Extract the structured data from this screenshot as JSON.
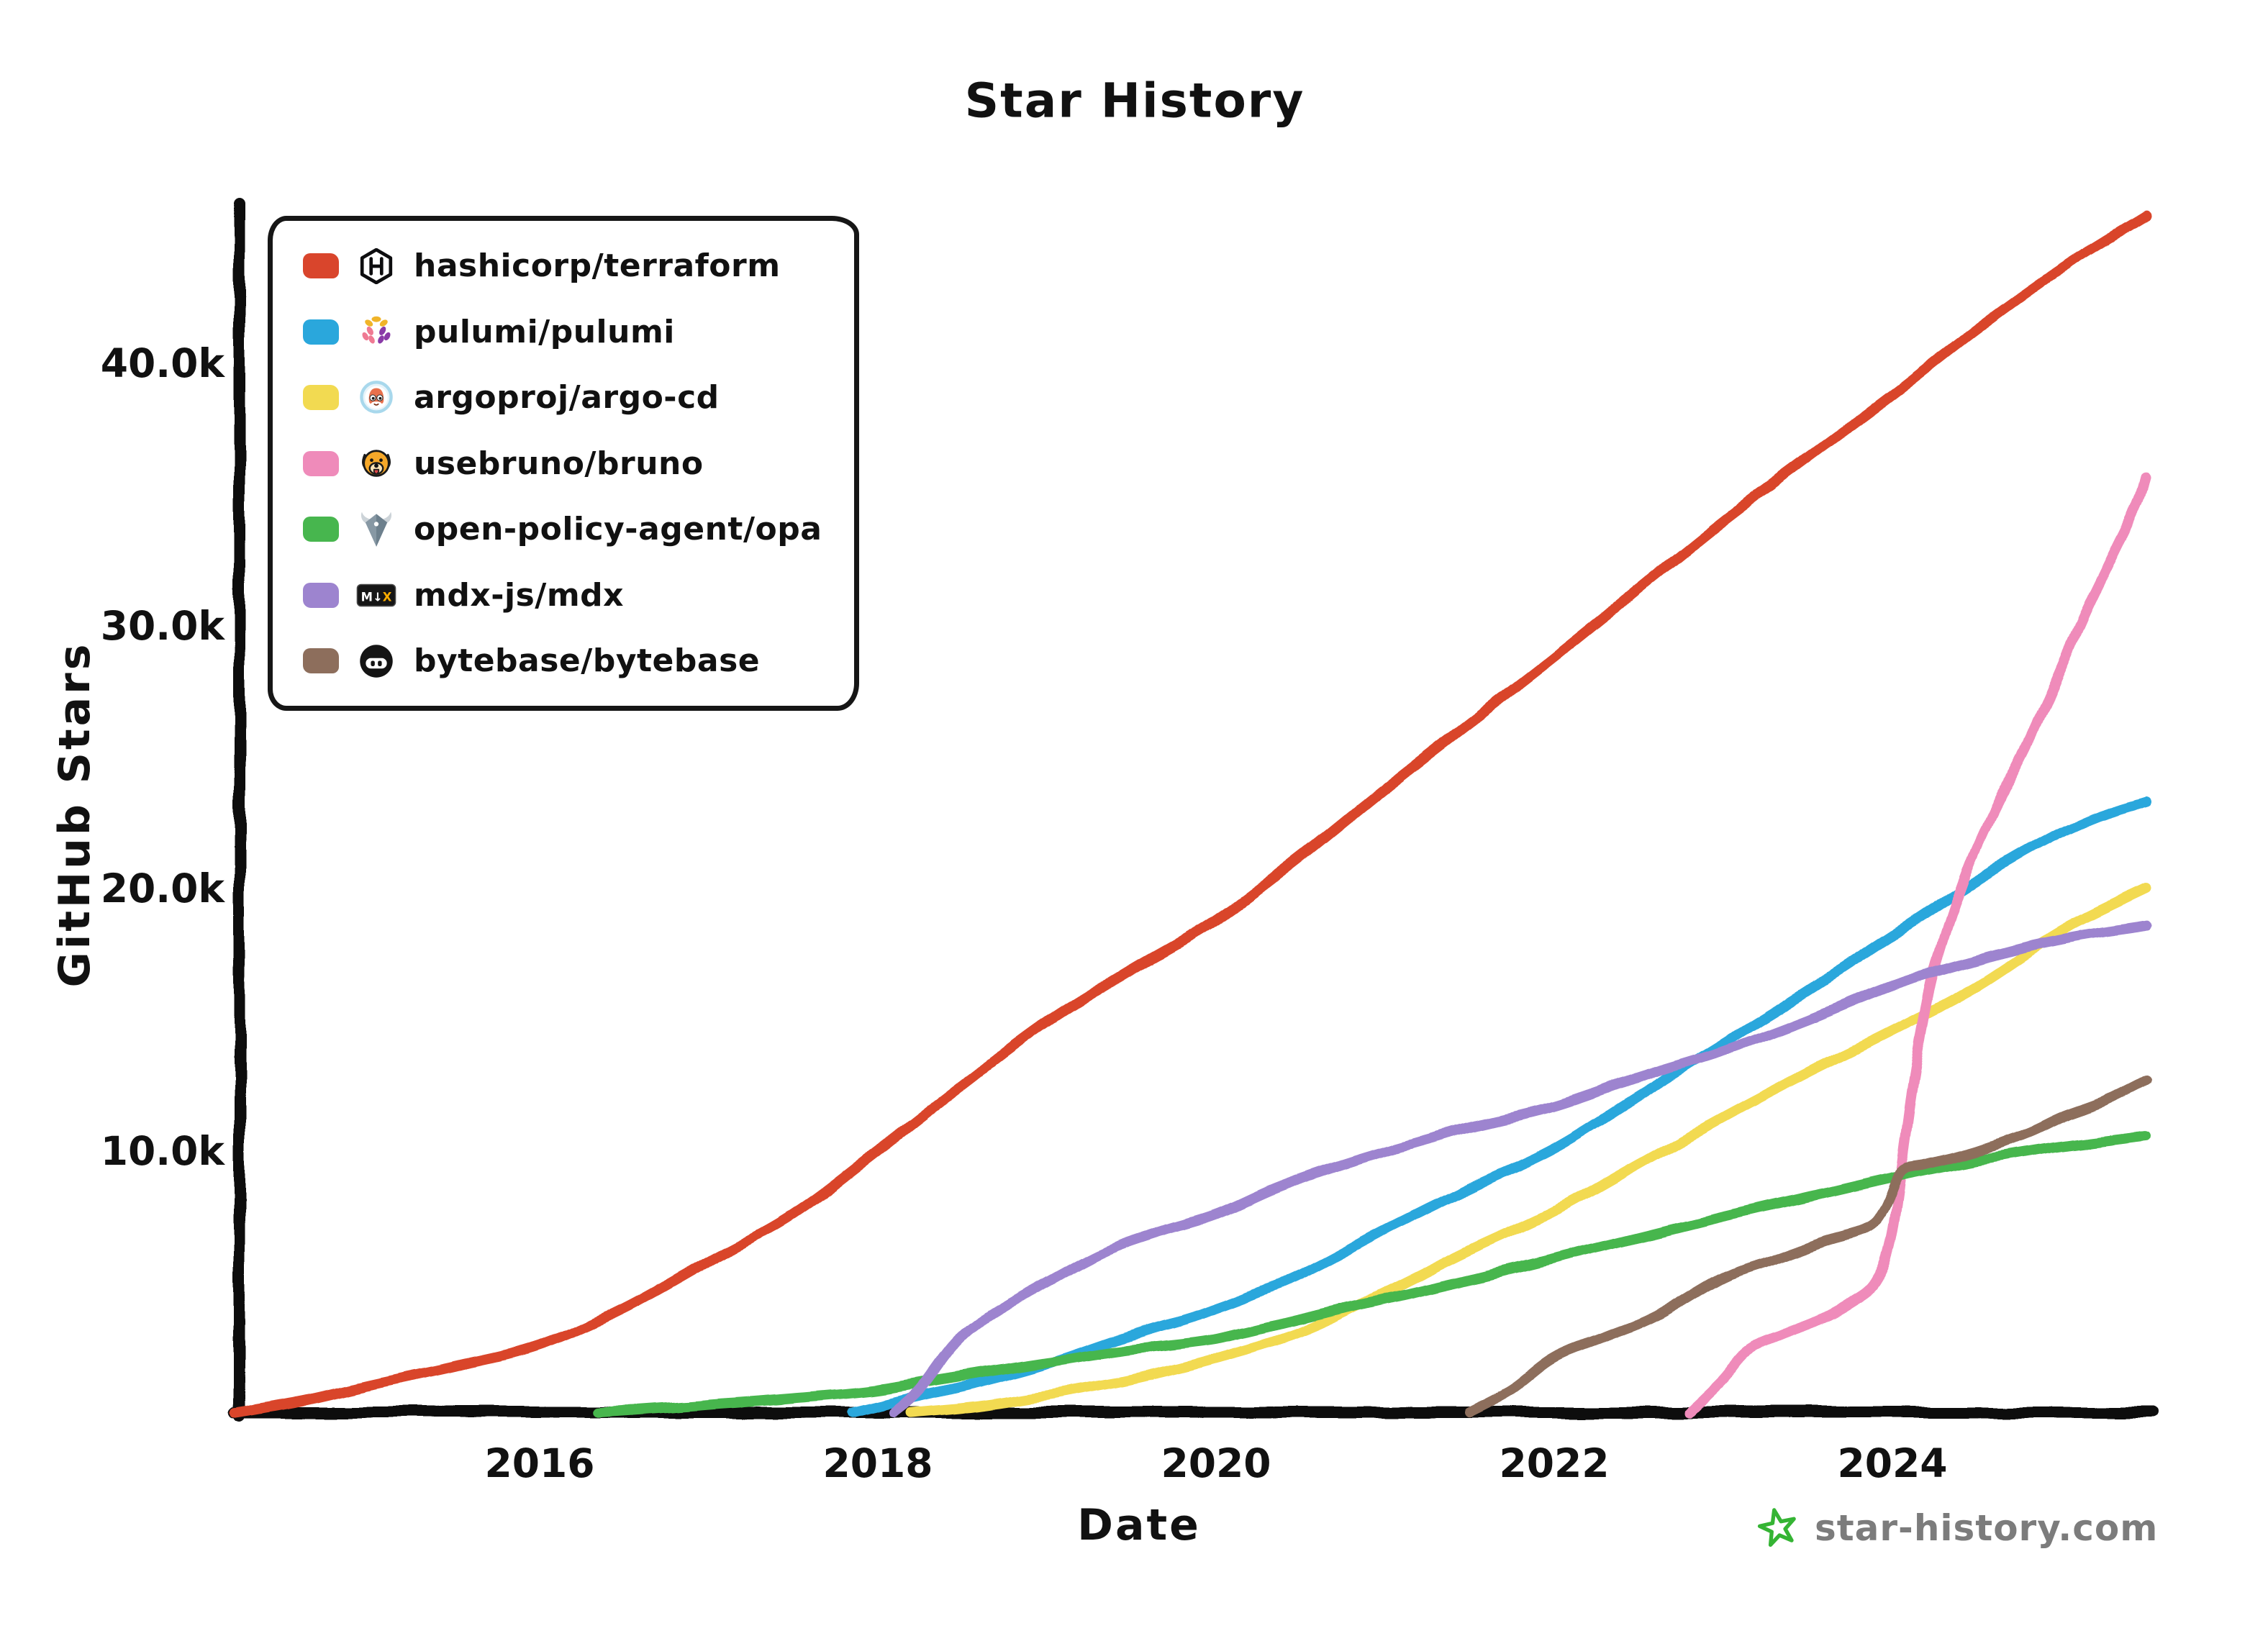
{
  "title": "Star History",
  "watermark": {
    "icon": "star-logo-icon",
    "text": "star-history.com"
  },
  "chart_data": {
    "type": "line",
    "title": "Star History",
    "xlabel": "Date",
    "ylabel": "GitHub Stars",
    "grid": false,
    "legend_position": "top-left",
    "x_range": [
      2014.2,
      2025.55
    ],
    "y_range": [
      0,
      46000
    ],
    "y_unit": "stars (thousands)",
    "x_ticks": [
      {
        "label": "2016",
        "year": 2016
      },
      {
        "label": "2018",
        "year": 2018
      },
      {
        "label": "2020",
        "year": 2020
      },
      {
        "label": "2022",
        "year": 2022
      },
      {
        "label": "2024",
        "year": 2024
      }
    ],
    "y_ticks": [
      {
        "label": "10.0k",
        "value": 10
      },
      {
        "label": "20.0k",
        "value": 20
      },
      {
        "label": "30.0k",
        "value": 30
      },
      {
        "label": "40.0k",
        "value": 40
      }
    ],
    "series": [
      {
        "name": "hashicorp/terraform",
        "color": "#d9452c",
        "icon": "hashicorp-icon",
        "points": [
          [
            2014.2,
            0.05
          ],
          [
            2014.6,
            0.5
          ],
          [
            2015,
            1.1
          ],
          [
            2015.5,
            1.8
          ],
          [
            2016,
            2.6
          ],
          [
            2016.5,
            4.0
          ],
          [
            2017,
            5.8
          ],
          [
            2017.5,
            7.6
          ],
          [
            2018,
            10.0
          ],
          [
            2018.5,
            12.5
          ],
          [
            2019,
            14.9
          ],
          [
            2019.5,
            16.9
          ],
          [
            2020,
            18.8
          ],
          [
            2020.5,
            21.2
          ],
          [
            2021,
            23.8
          ],
          [
            2021.5,
            26.3
          ],
          [
            2022,
            28.8
          ],
          [
            2022.5,
            31.4
          ],
          [
            2023,
            34.0
          ],
          [
            2023.5,
            36.4
          ],
          [
            2024,
            38.8
          ],
          [
            2024.5,
            41.3
          ],
          [
            2025,
            43.6
          ],
          [
            2025.5,
            45.6
          ]
        ]
      },
      {
        "name": "pulumi/pulumi",
        "color": "#2aa7dc",
        "icon": "pulumi-icon",
        "points": [
          [
            2017.85,
            0.05
          ],
          [
            2018.2,
            0.6
          ],
          [
            2018.6,
            1.2
          ],
          [
            2019,
            1.9
          ],
          [
            2019.5,
            3.0
          ],
          [
            2020,
            4.0
          ],
          [
            2020.5,
            5.3
          ],
          [
            2021,
            7.0
          ],
          [
            2021.5,
            8.6
          ],
          [
            2022,
            10.1
          ],
          [
            2022.5,
            12.1
          ],
          [
            2023,
            14.1
          ],
          [
            2023.5,
            16.1
          ],
          [
            2024,
            18.2
          ],
          [
            2024.5,
            20.3
          ],
          [
            2024.9,
            21.8
          ],
          [
            2025.2,
            22.7
          ],
          [
            2025.5,
            23.3
          ]
        ]
      },
      {
        "name": "argoproj/argo-cd",
        "color": "#f2da51",
        "icon": "argocd-icon",
        "points": [
          [
            2018.2,
            0.05
          ],
          [
            2018.6,
            0.3
          ],
          [
            2019,
            0.7
          ],
          [
            2019.5,
            1.3
          ],
          [
            2020,
            2.1
          ],
          [
            2020.5,
            3.1
          ],
          [
            2021,
            4.6
          ],
          [
            2021.5,
            6.2
          ],
          [
            2022,
            7.7
          ],
          [
            2022.5,
            9.5
          ],
          [
            2023,
            11.3
          ],
          [
            2023.5,
            13.0
          ],
          [
            2024,
            14.6
          ],
          [
            2024.5,
            16.3
          ],
          [
            2025,
            18.4
          ],
          [
            2025.5,
            20.0
          ]
        ]
      },
      {
        "name": "usebruno/bruno",
        "color": "#ef8bba",
        "icon": "bruno-icon",
        "points": [
          [
            2022.8,
            0.05
          ],
          [
            2023,
            1.3
          ],
          [
            2023.15,
            2.4
          ],
          [
            2023.35,
            3.0
          ],
          [
            2023.55,
            3.5
          ],
          [
            2023.75,
            4.2
          ],
          [
            2023.9,
            5.0
          ],
          [
            2024,
            6.8
          ],
          [
            2024.1,
            11.5
          ],
          [
            2024.2,
            15.5
          ],
          [
            2024.3,
            18.0
          ],
          [
            2024.45,
            20.8
          ],
          [
            2024.6,
            23.0
          ],
          [
            2024.8,
            25.5
          ],
          [
            2025,
            28.4
          ],
          [
            2025.15,
            30.6
          ],
          [
            2025.3,
            32.6
          ],
          [
            2025.45,
            34.6
          ],
          [
            2025.5,
            35.6
          ]
        ]
      },
      {
        "name": "open-policy-agent/opa",
        "color": "#47b64e",
        "icon": "opa-icon",
        "points": [
          [
            2016.35,
            0.05
          ],
          [
            2016.8,
            0.25
          ],
          [
            2017,
            0.35
          ],
          [
            2017.5,
            0.6
          ],
          [
            2018,
            0.9
          ],
          [
            2018.5,
            1.45
          ],
          [
            2019,
            1.95
          ],
          [
            2019.5,
            2.45
          ],
          [
            2020,
            2.85
          ],
          [
            2020.5,
            3.6
          ],
          [
            2021,
            4.35
          ],
          [
            2021.5,
            5.1
          ],
          [
            2022,
            5.9
          ],
          [
            2022.5,
            6.7
          ],
          [
            2023,
            7.5
          ],
          [
            2023.5,
            8.25
          ],
          [
            2024,
            9.0
          ],
          [
            2024.5,
            9.65
          ],
          [
            2025,
            10.2
          ],
          [
            2025.5,
            10.6
          ]
        ]
      },
      {
        "name": "mdx-js/mdx",
        "color": "#9d84cf",
        "icon": "mdx-icon",
        "points": [
          [
            2018.1,
            0.05
          ],
          [
            2018.25,
            0.9
          ],
          [
            2018.45,
            2.6
          ],
          [
            2018.65,
            3.7
          ],
          [
            2019,
            5.0
          ],
          [
            2019.35,
            6.2
          ],
          [
            2019.7,
            7.0
          ],
          [
            2020,
            7.6
          ],
          [
            2020.35,
            8.6
          ],
          [
            2020.7,
            9.4
          ],
          [
            2021,
            10.0
          ],
          [
            2021.5,
            10.9
          ],
          [
            2022,
            11.7
          ],
          [
            2022.5,
            12.8
          ],
          [
            2023,
            13.8
          ],
          [
            2023.5,
            15.0
          ],
          [
            2024,
            16.3
          ],
          [
            2024.4,
            17.1
          ],
          [
            2024.8,
            17.8
          ],
          [
            2025.2,
            18.3
          ],
          [
            2025.5,
            18.6
          ]
        ]
      },
      {
        "name": "bytebase/bytebase",
        "color": "#8d6e5c",
        "icon": "bytebase-icon",
        "points": [
          [
            2021.5,
            0.05
          ],
          [
            2021.75,
            0.9
          ],
          [
            2022,
            2.1
          ],
          [
            2022.3,
            2.9
          ],
          [
            2022.6,
            3.7
          ],
          [
            2023,
            5.2
          ],
          [
            2023.3,
            5.9
          ],
          [
            2023.6,
            6.6
          ],
          [
            2023.85,
            7.1
          ],
          [
            2023.95,
            7.8
          ],
          [
            2024.05,
            9.2
          ],
          [
            2024.2,
            9.5
          ],
          [
            2024.5,
            10.0
          ],
          [
            2024.8,
            10.7
          ],
          [
            2025,
            11.3
          ],
          [
            2025.25,
            11.9
          ],
          [
            2025.5,
            12.7
          ]
        ]
      }
    ]
  }
}
